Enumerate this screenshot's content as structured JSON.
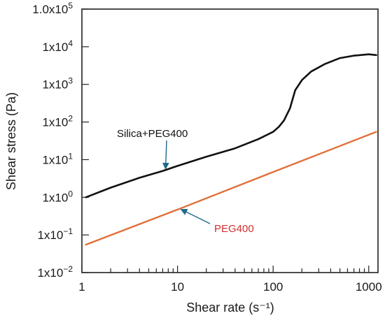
{
  "chart_data": {
    "type": "line",
    "xlabel": "Shear rate (s⁻¹)",
    "ylabel": "Shear stress (Pa)",
    "xscale": "log",
    "yscale": "log",
    "xlim": [
      1,
      1250
    ],
    "ylim": [
      0.01,
      100000
    ],
    "grid": false,
    "x_ticks": [
      {
        "value": 1,
        "label": "1"
      },
      {
        "value": 10,
        "label": "10"
      },
      {
        "value": 100,
        "label": "100"
      },
      {
        "value": 1000,
        "label": "1000"
      }
    ],
    "y_ticks": [
      {
        "value": 100000,
        "base": "1.0x10",
        "exp": "5"
      },
      {
        "value": 10000,
        "base": "1x10",
        "exp": "4"
      },
      {
        "value": 1000,
        "base": "1x10",
        "exp": "3"
      },
      {
        "value": 100,
        "base": "1x10",
        "exp": "2"
      },
      {
        "value": 10,
        "base": "1x10",
        "exp": "1"
      },
      {
        "value": 1,
        "base": "1x10",
        "exp": "0"
      },
      {
        "value": 0.1,
        "base": "1x10",
        "exp": "−1"
      },
      {
        "value": 0.01,
        "base": "1x10",
        "exp": "−2"
      }
    ],
    "series": [
      {
        "name": "Silica+PEG400",
        "color": "#111111",
        "x": [
          1.1,
          2,
          4,
          7,
          10,
          20,
          40,
          70,
          100,
          115,
          130,
          150,
          170,
          200,
          250,
          350,
          500,
          700,
          1000,
          1200
        ],
        "y": [
          1.0,
          1.8,
          3.3,
          5.0,
          6.8,
          12,
          20,
          35,
          55,
          75,
          110,
          230,
          700,
          1300,
          2200,
          3500,
          5000,
          5800,
          6300,
          6000
        ]
      },
      {
        "name": "PEG400",
        "color": "#e0703a",
        "x": [
          1.1,
          10,
          100,
          1200
        ],
        "y": [
          0.055,
          0.47,
          4.7,
          55
        ]
      }
    ],
    "annotations": [
      {
        "text": "Silica+PEG400",
        "color": "#111111",
        "arrow_target": {
          "x": 7.5,
          "y": 5.2
        }
      },
      {
        "text": "PEG400",
        "color": "#d32f2f",
        "arrow_target": {
          "x": 10.5,
          "y": 0.5
        }
      }
    ]
  }
}
